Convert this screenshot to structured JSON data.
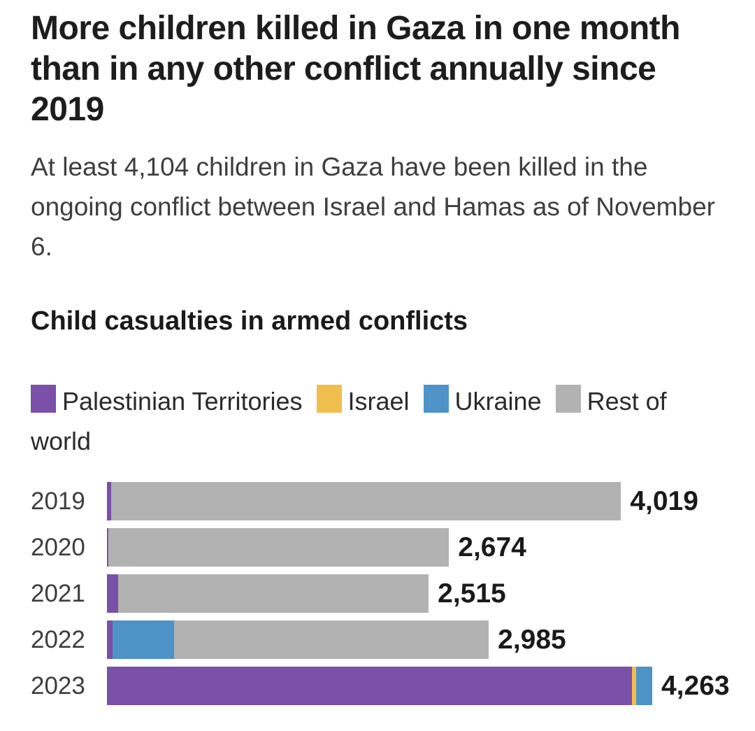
{
  "header": {
    "title": "More children killed in Gaza in one month than in any other conflict annually since 2019",
    "subtitle": "At least 4,104 children in Gaza have been killed in the ongoing conflict between Israel and Hamas as of November 6."
  },
  "chart_data": {
    "type": "bar",
    "orientation": "horizontal",
    "stacked": true,
    "title": "Child casualties in armed conflicts",
    "categories": [
      "2019",
      "2020",
      "2021",
      "2022",
      "2023"
    ],
    "totals": [
      4019,
      2674,
      2515,
      2985,
      4263
    ],
    "total_labels": [
      "4,019",
      "2,674",
      "2,515",
      "2,985",
      "4,263"
    ],
    "series": [
      {
        "name": "Palestinian Territories",
        "color": "#7A50A8",
        "values": [
          33,
          9,
          86,
          42,
          4104
        ]
      },
      {
        "name": "Israel",
        "color": "#F0BE4D",
        "values": [
          0,
          0,
          0,
          0,
          36
        ]
      },
      {
        "name": "Ukraine",
        "color": "#4E93C7",
        "values": [
          0,
          0,
          0,
          481,
          123
        ]
      },
      {
        "name": "Rest of world",
        "color": "#B2B2B2",
        "values": [
          3986,
          2665,
          2429,
          2462,
          0
        ]
      }
    ],
    "xlim": [
      0,
      4263
    ],
    "grid": false,
    "legend_position": "top",
    "value_labels": "end-of-bar"
  }
}
